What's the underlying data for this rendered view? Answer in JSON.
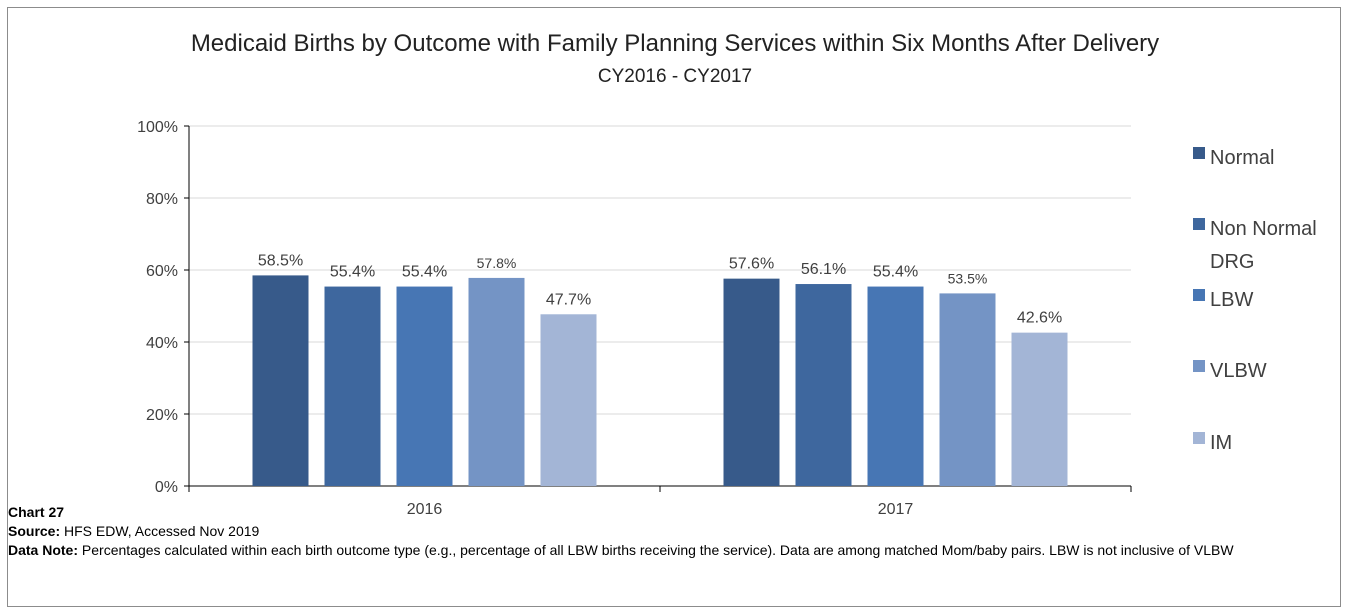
{
  "chart_data": {
    "type": "bar",
    "title": "Medicaid Births by Outcome with Family Planning Services within Six Months After Delivery",
    "subtitle": "CY2016 - CY2017",
    "categories": [
      "2016",
      "2017"
    ],
    "series": [
      {
        "name": "Normal",
        "values": [
          58.5,
          57.6
        ],
        "labels": [
          "58.5%",
          "57.6%"
        ],
        "color": "#375a8a"
      },
      {
        "name": "Non Normal DRG",
        "values": [
          55.4,
          56.1
        ],
        "labels": [
          "55.4%",
          "56.1%"
        ],
        "color": "#3e679e"
      },
      {
        "name": "LBW",
        "values": [
          55.4,
          55.4
        ],
        "labels": [
          "55.4%",
          "55.4%"
        ],
        "color": "#4776b4"
      },
      {
        "name": "VLBW",
        "values": [
          57.8,
          53.5
        ],
        "labels": [
          "57.8%",
          "53.5%"
        ],
        "color": "#7494c5"
      },
      {
        "name": "IM",
        "values": [
          47.7,
          42.6
        ],
        "labels": [
          "47.7%",
          "42.6%"
        ],
        "color": "#a3b5d6"
      }
    ],
    "ylim": [
      0,
      100
    ],
    "yticks": [
      "0%",
      "20%",
      "40%",
      "60%",
      "80%",
      "100%"
    ],
    "ytick_values": [
      0,
      20,
      40,
      60,
      80,
      100
    ],
    "grid": true,
    "legend_position": "right"
  },
  "notes": {
    "chart_label": "Chart  27",
    "source_label": "Source:",
    "source_text": " HFS EDW, Accessed Nov 2019",
    "data_note_label": "Data Note:",
    "data_note_text": " Percentages calculated within each birth outcome type (e.g., percentage of all LBW births receiving the service).  Data are among matched Mom/baby pairs. LBW is not inclusive of VLBW"
  }
}
